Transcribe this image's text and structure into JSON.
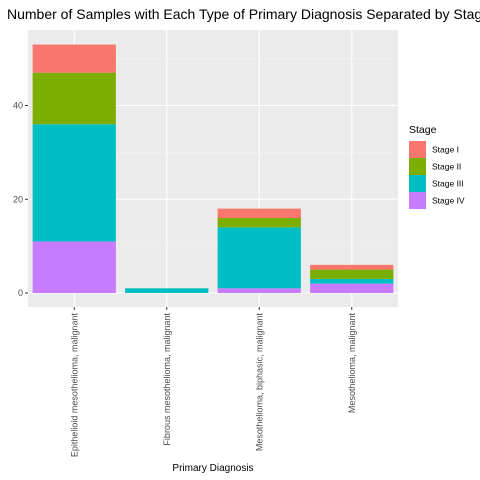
{
  "chart_data": {
    "type": "bar",
    "stacked": true,
    "title": "Number of Samples with Each Type of Primary Diagnosis Separated by Stage o",
    "xlabel": "Primary Diagnosis",
    "ylabel": "",
    "categories": [
      "Epithelioid mesothelioma, malignant",
      "Fibrous mesothelioma, malignant",
      "Mesothelioma, biphasic, malignant",
      "Mesothelioma, malignant"
    ],
    "series": [
      {
        "name": "Stage IV",
        "color": "#C77CFF",
        "values": [
          11,
          0,
          1,
          2
        ]
      },
      {
        "name": "Stage III",
        "color": "#00BFC4",
        "values": [
          25,
          1,
          13,
          1
        ]
      },
      {
        "name": "Stage II",
        "color": "#7CAE00",
        "values": [
          11,
          0,
          2,
          2
        ]
      },
      {
        "name": "Stage I",
        "color": "#F8766D",
        "values": [
          6,
          0,
          2,
          1
        ]
      }
    ],
    "ylim": [
      0,
      56
    ],
    "yticks": [
      0,
      20,
      40
    ],
    "grid": true,
    "legend": {
      "title": "Stage",
      "placement": "right",
      "entries": [
        {
          "label": "Stage I",
          "color": "#F8766D"
        },
        {
          "label": "Stage II",
          "color": "#7CAE00"
        },
        {
          "label": "Stage III",
          "color": "#00BFC4"
        },
        {
          "label": "Stage IV",
          "color": "#C77CFF"
        }
      ]
    }
  }
}
